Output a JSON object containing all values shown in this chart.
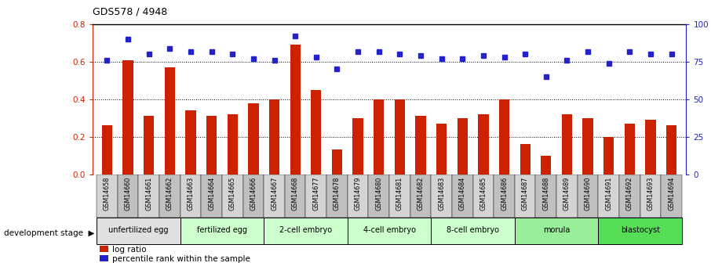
{
  "title": "GDS578 / 4948",
  "samples": [
    "GSM14658",
    "GSM14660",
    "GSM14661",
    "GSM14662",
    "GSM14663",
    "GSM14664",
    "GSM14665",
    "GSM14666",
    "GSM14667",
    "GSM14668",
    "GSM14677",
    "GSM14678",
    "GSM14679",
    "GSM14680",
    "GSM14681",
    "GSM14682",
    "GSM14683",
    "GSM14684",
    "GSM14685",
    "GSM14686",
    "GSM14687",
    "GSM14688",
    "GSM14689",
    "GSM14690",
    "GSM14691",
    "GSM14692",
    "GSM14693",
    "GSM14694"
  ],
  "log_ratio": [
    0.26,
    0.61,
    0.31,
    0.57,
    0.34,
    0.31,
    0.32,
    0.38,
    0.4,
    0.69,
    0.45,
    0.13,
    0.3,
    0.4,
    0.4,
    0.31,
    0.27,
    0.3,
    0.32,
    0.4,
    0.16,
    0.1,
    0.32,
    0.3,
    0.2,
    0.27,
    0.29,
    0.26
  ],
  "percentile_pct": [
    76,
    90,
    80,
    84,
    82,
    82,
    80,
    77,
    76,
    92,
    78,
    70,
    82,
    82,
    80,
    79,
    77,
    77,
    79,
    78,
    80,
    65,
    76,
    82,
    74,
    82,
    80,
    80
  ],
  "bar_color": "#cc2200",
  "dot_color": "#2222cc",
  "ylim_left": [
    0,
    0.8
  ],
  "ylim_right": [
    0,
    100
  ],
  "yticks_left": [
    0,
    0.2,
    0.4,
    0.6,
    0.8
  ],
  "yticks_right": [
    0,
    25,
    50,
    75,
    100
  ],
  "stages": [
    {
      "label": "unfertilized egg",
      "start": 0,
      "end": 4,
      "color": "#e0e0e0"
    },
    {
      "label": "fertilized egg",
      "start": 4,
      "end": 8,
      "color": "#ccffcc"
    },
    {
      "label": "2-cell embryo",
      "start": 8,
      "end": 12,
      "color": "#ccffcc"
    },
    {
      "label": "4-cell embryo",
      "start": 12,
      "end": 16,
      "color": "#ccffcc"
    },
    {
      "label": "8-cell embryo",
      "start": 16,
      "end": 20,
      "color": "#ccffcc"
    },
    {
      "label": "morula",
      "start": 20,
      "end": 24,
      "color": "#99ee99"
    },
    {
      "label": "blastocyst",
      "start": 24,
      "end": 28,
      "color": "#55dd55"
    }
  ],
  "dev_stage_label": "development stage",
  "background_color": "#ffffff"
}
